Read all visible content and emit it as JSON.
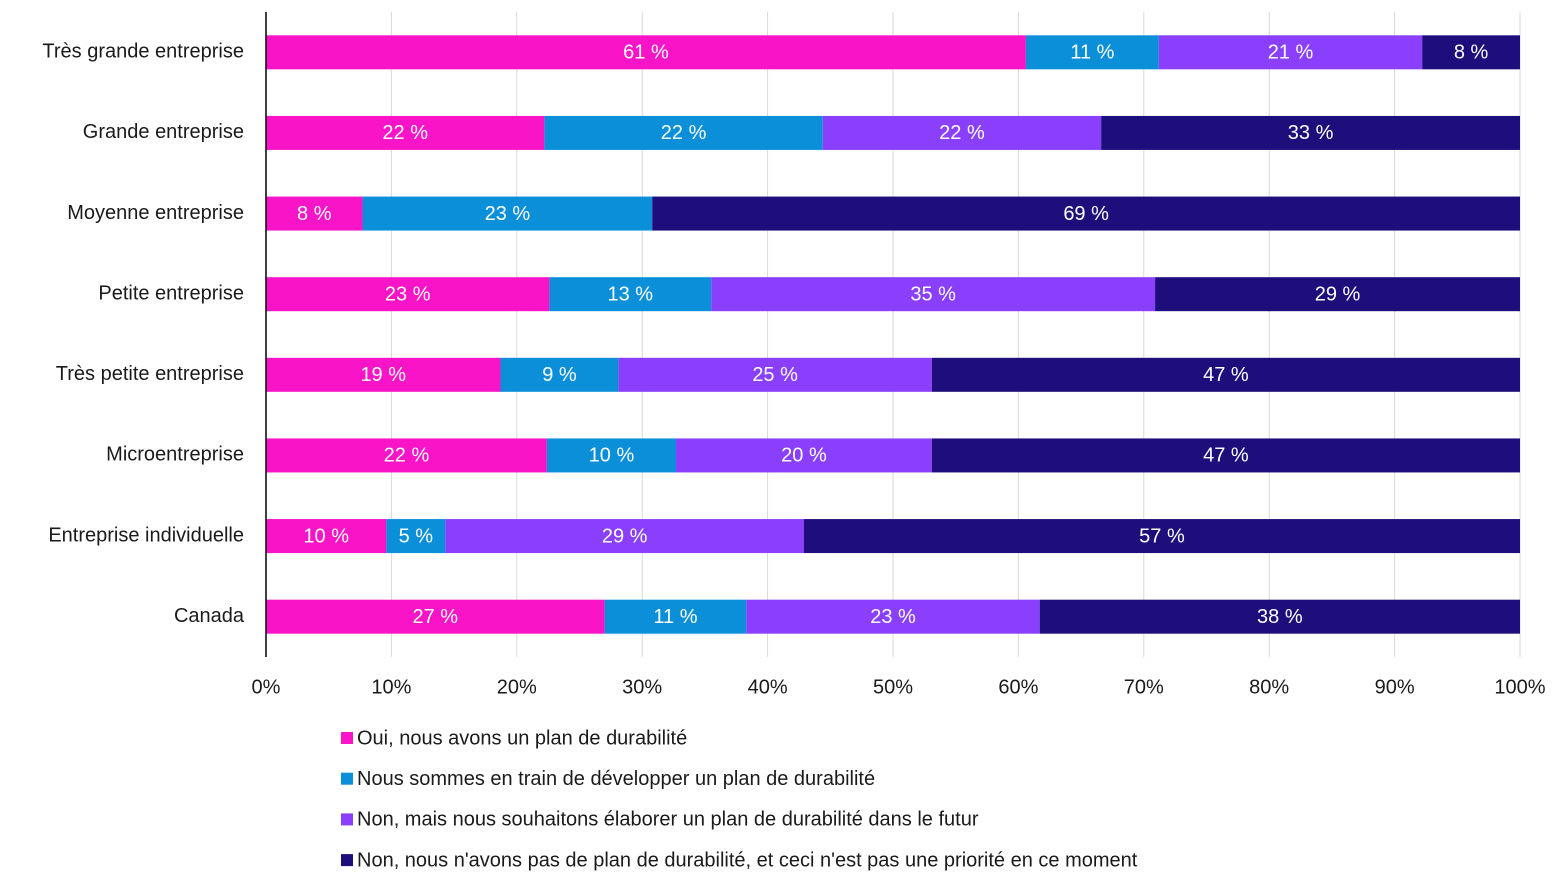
{
  "chart_data": {
    "type": "stacked-barh",
    "categories": [
      "Très grande entreprise",
      "Grande entreprise",
      "Moyenne entreprise",
      "Petite entreprise",
      "Très petite entreprise",
      "Microentreprise",
      "Entreprise individuelle",
      "Canada"
    ],
    "series": [
      {
        "name": "Oui, nous avons un plan de durabilité",
        "color": "#f915c7",
        "values": [
          60.6,
          22.2,
          7.7,
          22.6,
          18.7,
          22.4,
          9.6,
          27.0
        ],
        "value_labels": [
          "61 %",
          "22 %",
          "8 %",
          "23 %",
          "19 %",
          "22 %",
          "10 %",
          "27 %"
        ]
      },
      {
        "name": "Nous sommes en train de développer un plan de durabilité",
        "color": "#0b8fd9",
        "values": [
          10.6,
          22.2,
          23.1,
          12.9,
          9.4,
          10.3,
          4.7,
          11.3
        ],
        "value_labels": [
          "11 %",
          "22 %",
          "23 %",
          "13 %",
          "9 %",
          "10 %",
          "5 %",
          "11 %"
        ]
      },
      {
        "name": "Non, mais nous souhaitons élaborer un plan de durabilité dans le futur",
        "color": "#8a3ffc",
        "values": [
          21.0,
          22.2,
          null,
          35.4,
          25.0,
          20.4,
          28.6,
          23.4
        ],
        "value_labels": [
          "21 %",
          "22 %",
          null,
          "35 %",
          "25 %",
          "20 %",
          "29 %",
          "23 %"
        ]
      },
      {
        "name": "Non, nous n'avons pas de plan de durabilité, et ceci n'est pas une priorité en ce moment",
        "color": "#1d0e7c",
        "values": [
          7.8,
          33.4,
          69.2,
          29.1,
          46.9,
          46.9,
          57.1,
          38.3
        ],
        "value_labels": [
          "8 %",
          "33 %",
          "69 %",
          "29 %",
          "47 %",
          "47 %",
          "57 %",
          "38 %"
        ]
      }
    ],
    "xlim": [
      0,
      100
    ],
    "xticks": [
      {
        "value": 0,
        "label": "0%"
      },
      {
        "value": 10,
        "label": "10%"
      },
      {
        "value": 20,
        "label": "20%"
      },
      {
        "value": 30,
        "label": "30%"
      },
      {
        "value": 40,
        "label": "40%"
      },
      {
        "value": 50,
        "label": "50%"
      },
      {
        "value": 60,
        "label": "60%"
      },
      {
        "value": 70,
        "label": "70%"
      },
      {
        "value": 80,
        "label": "80%"
      },
      {
        "value": 90,
        "label": "90%"
      },
      {
        "value": 100,
        "label": "100%"
      }
    ],
    "grid": true
  }
}
